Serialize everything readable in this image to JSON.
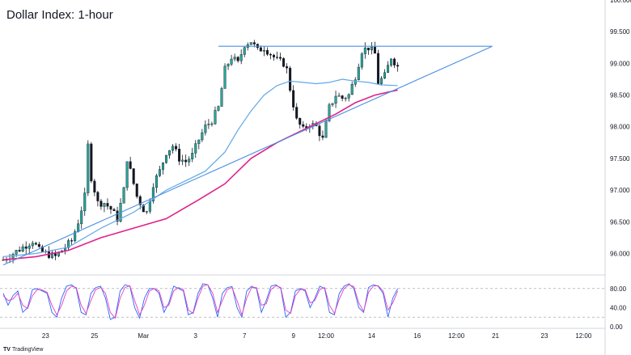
{
  "title": "Dollar Index: 1-hour",
  "footer": {
    "logo_text": "TradingView"
  },
  "colors": {
    "up": "#26a69a",
    "down": "#131722",
    "candle": "#131722",
    "trendline": "#4a90e2",
    "resistance": "#4a90e2",
    "ma_fast": "#5fa8e8",
    "ma_slow": "#e0218a",
    "stoch_k": "#2962ff",
    "stoch_d": "#e53fbd",
    "grid": "#e0e3eb"
  },
  "chart_data": [
    {
      "type": "candlestick",
      "title": "Dollar Index: 1-hour",
      "ylim": [
        95.7,
        100.0
      ],
      "y_ticks": [
        "100.000",
        "99.500",
        "99.000",
        "98.500",
        "98.000",
        "97.500",
        "97.000",
        "96.500",
        "96.000"
      ],
      "x_ticks": [
        "23",
        "25",
        "Mar",
        "3",
        "7",
        "9",
        "12:00",
        "14",
        "16",
        "12:00",
        "21",
        "23",
        "12:00"
      ],
      "grid": false,
      "close_path": [
        [
          0,
          95.9
        ],
        [
          3,
          96.0
        ],
        [
          6,
          96.1
        ],
        [
          9,
          96.2
        ],
        [
          11,
          96.05
        ],
        [
          13,
          96.0
        ],
        [
          16,
          95.95
        ],
        [
          19,
          96.1
        ],
        [
          21,
          96.2
        ],
        [
          23,
          96.5
        ],
        [
          25,
          96.9
        ],
        [
          26,
          97.7
        ],
        [
          27,
          97.2
        ],
        [
          29,
          96.8
        ],
        [
          31,
          96.8
        ],
        [
          33,
          96.7
        ],
        [
          35,
          96.55
        ],
        [
          37,
          97.0
        ],
        [
          38,
          97.5
        ],
        [
          39,
          97.3
        ],
        [
          41,
          96.9
        ],
        [
          43,
          96.7
        ],
        [
          44,
          96.65
        ],
        [
          46,
          97.1
        ],
        [
          48,
          97.3
        ],
        [
          50,
          97.6
        ],
        [
          52,
          97.7
        ],
        [
          54,
          97.5
        ],
        [
          56,
          97.45
        ],
        [
          58,
          97.55
        ],
        [
          60,
          97.8
        ],
        [
          62,
          98.0
        ],
        [
          64,
          98.1
        ],
        [
          66,
          98.3
        ],
        [
          68,
          98.9
        ],
        [
          70,
          99.1
        ],
        [
          72,
          99.0
        ],
        [
          74,
          99.3
        ],
        [
          76,
          99.35
        ],
        [
          78,
          99.2
        ],
        [
          80,
          99.25
        ],
        [
          82,
          99.15
        ],
        [
          84,
          99.05
        ],
        [
          86,
          99.0
        ],
        [
          87,
          98.9
        ],
        [
          88,
          98.6
        ],
        [
          90,
          98.1
        ],
        [
          92,
          97.95
        ],
        [
          94,
          98.05
        ],
        [
          96,
          98.0
        ],
        [
          98,
          97.8
        ],
        [
          100,
          98.3
        ],
        [
          102,
          98.5
        ],
        [
          104,
          98.45
        ],
        [
          106,
          98.5
        ],
        [
          108,
          98.8
        ],
        [
          110,
          99.2
        ],
        [
          112,
          99.25
        ],
        [
          114,
          99.15
        ],
        [
          115,
          98.7
        ],
        [
          117,
          98.8
        ],
        [
          119,
          99.1
        ],
        [
          121,
          98.95
        ]
      ],
      "series": [
        {
          "name": "",
          "key": "ma_fast",
          "points": [
            [
              0,
              95.95
            ],
            [
              10,
              96.0
            ],
            [
              20,
              96.1
            ],
            [
              30,
              96.4
            ],
            [
              40,
              96.65
            ],
            [
              50,
              97.0
            ],
            [
              56,
              97.15
            ],
            [
              62,
              97.3
            ],
            [
              68,
              97.6
            ],
            [
              72,
              97.95
            ],
            [
              76,
              98.25
            ],
            [
              80,
              98.5
            ],
            [
              84,
              98.65
            ],
            [
              88,
              98.72
            ],
            [
              92,
              98.7
            ],
            [
              96,
              98.68
            ],
            [
              100,
              98.7
            ],
            [
              104,
              98.75
            ],
            [
              108,
              98.72
            ],
            [
              112,
              98.7
            ],
            [
              116,
              98.66
            ],
            [
              121,
              98.65
            ]
          ]
        },
        {
          "name": "",
          "key": "ma_slow",
          "points": [
            [
              0,
              95.9
            ],
            [
              10,
              95.95
            ],
            [
              20,
              96.05
            ],
            [
              30,
              96.25
            ],
            [
              40,
              96.4
            ],
            [
              50,
              96.55
            ],
            [
              60,
              96.85
            ],
            [
              68,
              97.1
            ],
            [
              76,
              97.5
            ],
            [
              84,
              97.75
            ],
            [
              90,
              97.9
            ],
            [
              96,
              98.05
            ],
            [
              102,
              98.2
            ],
            [
              108,
              98.38
            ],
            [
              114,
              98.5
            ],
            [
              121,
              98.58
            ]
          ]
        }
      ],
      "annotations": [
        {
          "name": "ascending-trendline",
          "from": [
            0,
            95.82
          ],
          "to": [
            150,
            99.27
          ]
        },
        {
          "name": "resistance-line",
          "from": [
            66,
            99.27
          ],
          "to": [
            150,
            99.27
          ]
        }
      ]
    },
    {
      "type": "oscillator",
      "ylim": [
        0,
        100
      ],
      "y_ticks": [
        "80.00",
        "40.00",
        "0.00"
      ],
      "guides": [
        80,
        20
      ],
      "series": [
        {
          "name": "",
          "key": "stoch_k",
          "values": [
            70,
            45,
            65,
            75,
            30,
            40,
            78,
            80,
            75,
            70,
            30,
            20,
            60,
            85,
            88,
            80,
            30,
            25,
            70,
            82,
            85,
            60,
            15,
            20,
            75,
            88,
            85,
            40,
            18,
            60,
            80,
            80,
            70,
            30,
            50,
            85,
            80,
            75,
            25,
            30,
            70,
            90,
            88,
            60,
            20,
            70,
            82,
            84,
            40,
            20,
            75,
            85,
            80,
            30,
            55,
            85,
            88,
            80,
            20,
            30,
            75,
            80,
            75,
            40,
            60,
            85,
            80,
            30,
            25,
            70,
            85,
            90,
            80,
            40,
            30,
            82,
            88,
            85,
            70,
            20,
            60,
            80
          ]
        },
        {
          "name": "",
          "key": "stoch_d",
          "values": [
            65,
            55,
            58,
            70,
            45,
            38,
            65,
            78,
            77,
            72,
            45,
            25,
            45,
            75,
            85,
            82,
            45,
            28,
            55,
            78,
            82,
            70,
            30,
            18,
            60,
            82,
            86,
            55,
            25,
            45,
            75,
            80,
            75,
            40,
            45,
            75,
            82,
            78,
            35,
            28,
            60,
            85,
            88,
            70,
            30,
            55,
            78,
            82,
            55,
            25,
            60,
            82,
            82,
            45,
            48,
            78,
            86,
            82,
            35,
            28,
            65,
            78,
            78,
            50,
            55,
            78,
            82,
            45,
            28,
            58,
            80,
            88,
            84,
            50,
            32,
            72,
            85,
            86,
            75,
            35,
            50,
            75
          ]
        }
      ]
    }
  ]
}
